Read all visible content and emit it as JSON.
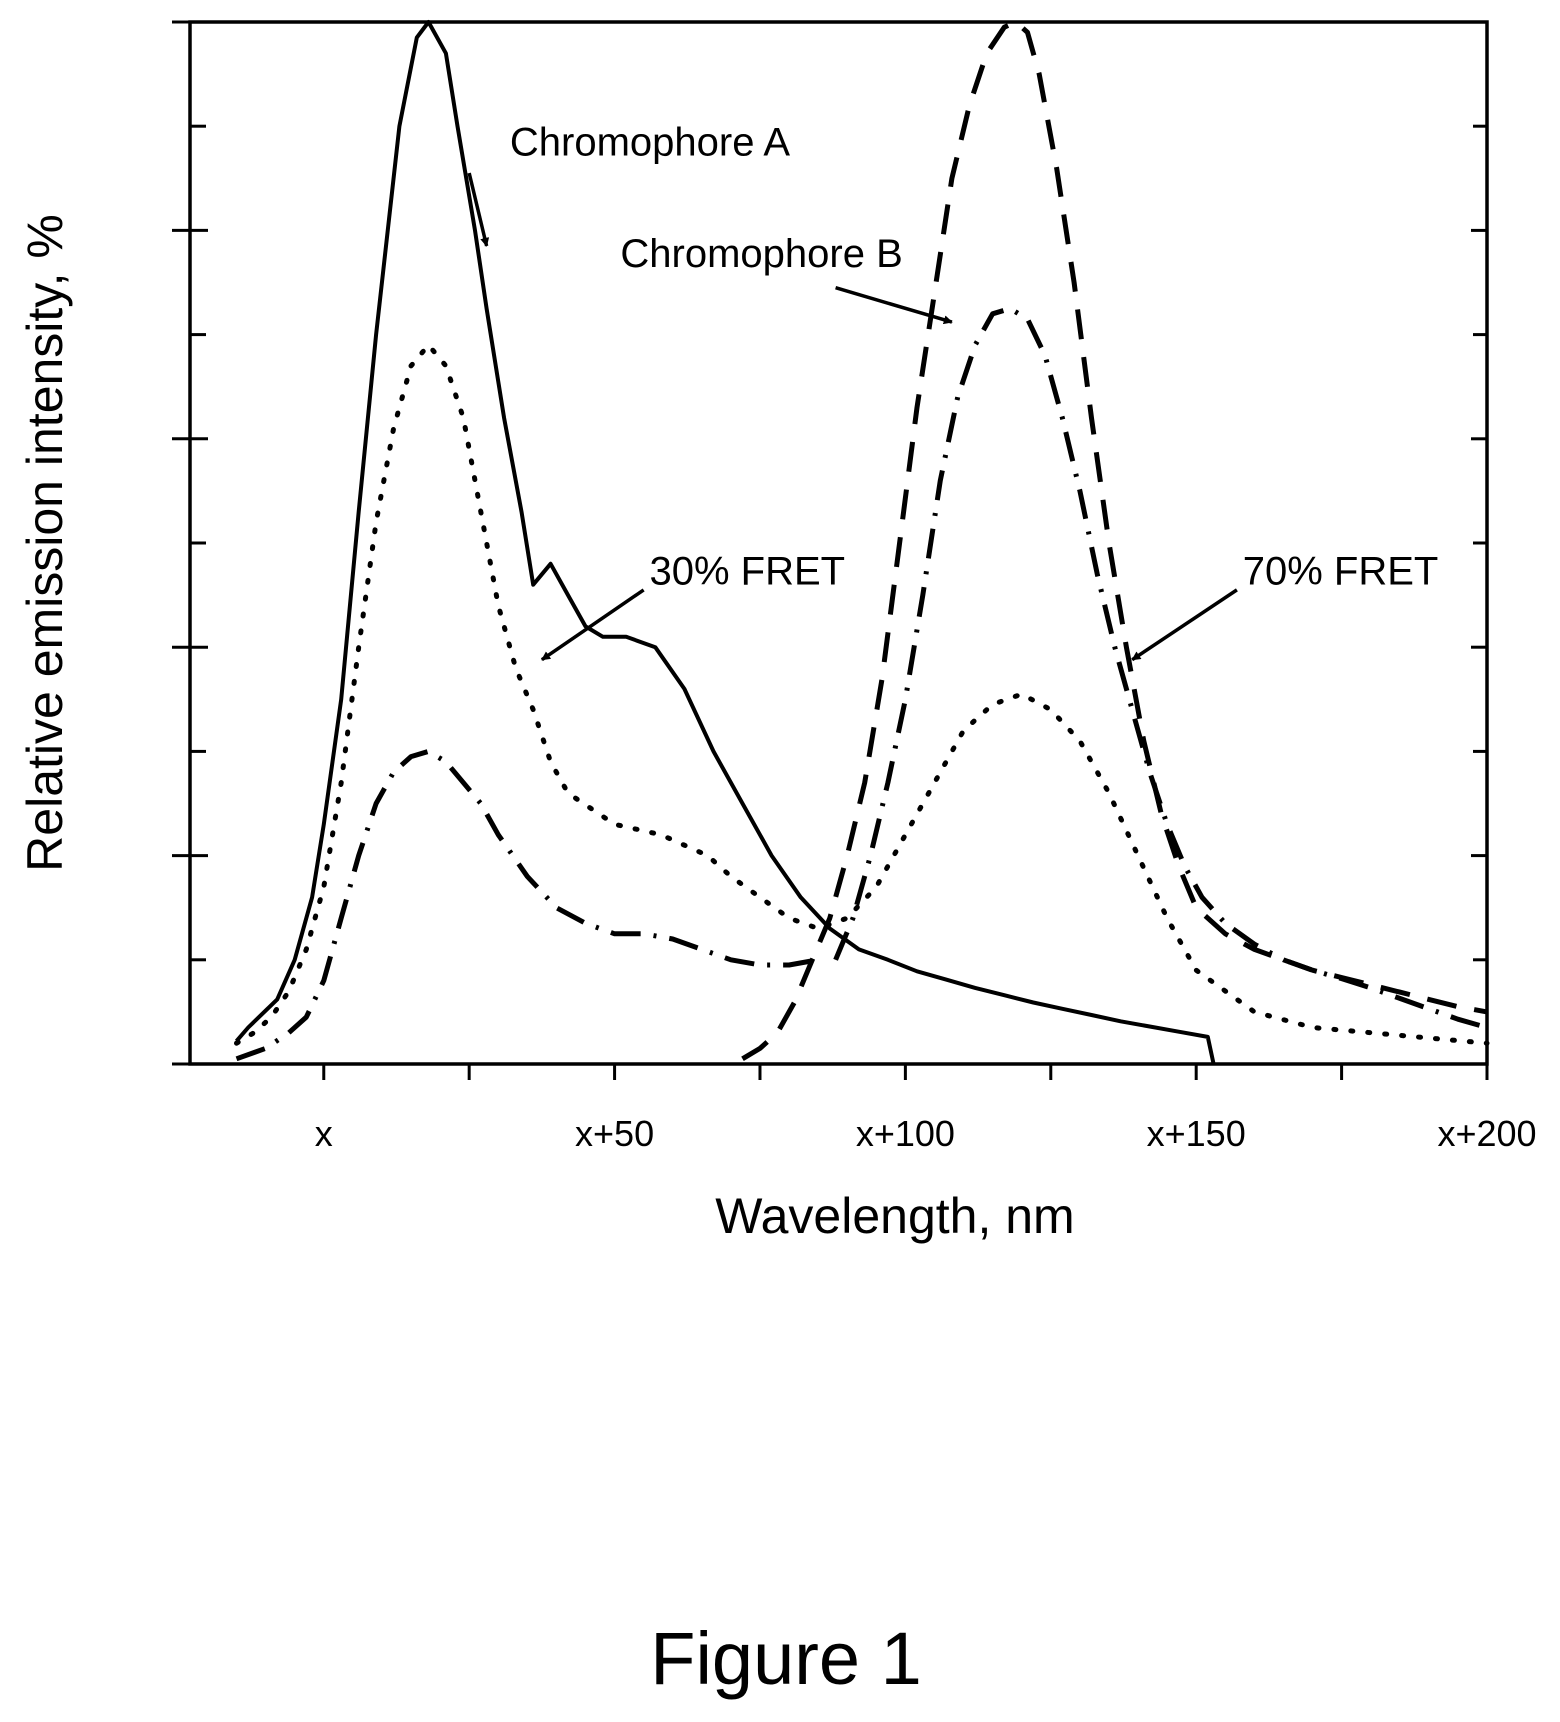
{
  "figure_caption": "Figure 1",
  "chart_data": {
    "type": "line",
    "title": "",
    "xlabel": "Wavelength, nm",
    "ylabel": "Relative emission intensity, %",
    "xlim": [
      -23,
      200
    ],
    "ylim": [
      0,
      100
    ],
    "x_tick_labels": [
      {
        "value": 0,
        "label": "x"
      },
      {
        "value": 50,
        "label": "x+50"
      },
      {
        "value": 100,
        "label": "x+100"
      },
      {
        "value": 150,
        "label": "x+150"
      },
      {
        "value": 200,
        "label": "x+200"
      }
    ],
    "x_minor_ticks": [
      0,
      25,
      50,
      75,
      100,
      125,
      150,
      175,
      200
    ],
    "y_major_ticks": [
      0,
      20,
      40,
      60,
      80,
      100
    ],
    "y_minor_ticks": [
      10,
      30,
      50,
      70,
      90
    ],
    "y_tick_labels_shown": false,
    "grid": false,
    "legend": "none",
    "series": [
      {
        "style": "solid",
        "x": [
          -15,
          -13,
          -8,
          -5,
          -2,
          0,
          3,
          6,
          9,
          13,
          16,
          18,
          21,
          23,
          26,
          28,
          31,
          34,
          36,
          39,
          42,
          45,
          48,
          52,
          57,
          62,
          67,
          72,
          77,
          82,
          87,
          92,
          97,
          102,
          107,
          112,
          117,
          122,
          127,
          132,
          137,
          142,
          147,
          152,
          153
        ],
        "y": [
          2.2,
          3.5,
          6.2,
          10,
          16,
          23,
          35,
          53,
          70,
          90,
          98.5,
          100,
          97,
          90,
          80,
          72.5,
          62,
          53,
          46,
          48,
          45,
          42,
          41,
          41,
          40,
          36,
          30,
          25,
          20,
          16,
          13,
          11,
          10,
          8.9,
          8.1,
          7.3,
          6.6,
          5.9,
          5.3,
          4.7,
          4.1,
          3.6,
          3.1,
          2.6,
          0
        ]
      },
      {
        "style": "dotted",
        "x": [
          -15,
          -12,
          -9,
          -6,
          -3,
          0,
          3,
          6,
          9,
          12,
          15,
          18,
          21,
          24,
          27,
          30,
          33,
          36,
          39,
          42,
          46,
          50,
          54,
          58,
          62,
          66,
          70,
          75,
          80,
          85,
          90,
          95,
          100,
          105,
          110,
          115,
          120,
          125,
          130,
          135,
          140,
          145,
          150,
          160,
          170,
          180,
          190,
          200
        ],
        "y": [
          2,
          3,
          4.5,
          7,
          11,
          17,
          27,
          40,
          52,
          61,
          67,
          69,
          67,
          62,
          53,
          44,
          38,
          34,
          29,
          26,
          24.5,
          23,
          22.5,
          22,
          21,
          20,
          18,
          16,
          14,
          13,
          14,
          17,
          22,
          27,
          32,
          34.5,
          35.5,
          34,
          31,
          26,
          20,
          14,
          9,
          5,
          3.5,
          3,
          2.5,
          2
        ]
      },
      {
        "style": "dash-dot",
        "x": [
          -15,
          -10,
          -6,
          -3,
          0,
          3,
          6,
          9,
          12,
          15,
          18,
          21,
          24,
          27,
          30,
          35,
          40,
          45,
          50,
          55,
          60,
          65,
          70,
          75,
          80,
          85
        ],
        "y": [
          0.5,
          1.5,
          3,
          4.5,
          8,
          14,
          20,
          25,
          28,
          29.5,
          30,
          29,
          27,
          25,
          22,
          18,
          15,
          13.5,
          12.5,
          12.5,
          12,
          11,
          10,
          9.5,
          9.5,
          10
        ]
      },
      {
        "style": "dashed",
        "x": [
          72,
          75,
          78,
          81,
          84,
          87,
          90,
          93,
          96,
          99,
          102,
          105,
          108,
          111,
          114,
          117,
          119,
          121,
          123,
          126,
          129,
          132,
          135,
          138,
          141,
          144,
          147,
          150,
          155,
          160,
          165,
          170,
          175,
          180,
          185,
          190,
          195,
          200
        ],
        "y": [
          0.5,
          1.5,
          3,
          6,
          10,
          14,
          20,
          27,
          37,
          50,
          63,
          74,
          85,
          92,
          97,
          99.5,
          100,
          99,
          95,
          86,
          75,
          62,
          50,
          40,
          31,
          24,
          19,
          15,
          12.5,
          11,
          10,
          9,
          8.3,
          7.6,
          6.9,
          6.2,
          5.5,
          5
        ]
      },
      {
        "style": "dash-dot",
        "x": [
          88,
          91,
          94,
          97,
          100,
          103,
          106,
          109,
          112,
          115,
          118,
          121,
          124,
          127,
          130,
          133,
          136,
          139,
          142,
          145,
          148,
          151,
          155,
          160,
          165,
          170,
          175,
          180,
          185,
          190,
          195,
          200
        ],
        "y": [
          10,
          14,
          20,
          27,
          35,
          45,
          56,
          64,
          69,
          72,
          72.5,
          71.5,
          68,
          62,
          55,
          47,
          40,
          34,
          28,
          23,
          19,
          16,
          13.5,
          11.5,
          10,
          9,
          8.2,
          7.3,
          6.3,
          5.3,
          4.3,
          3.5
        ]
      }
    ],
    "annotations": [
      {
        "text": "Chromophore A",
        "text_x": 32,
        "text_y": 87.2,
        "arrow_from": [
          25,
          85.5
        ],
        "arrow_to": [
          28,
          78.5
        ]
      },
      {
        "text": "Chromophore B",
        "text_x": 51,
        "text_y": 76.5,
        "arrow_from": [
          88,
          74.5
        ],
        "arrow_to": [
          108,
          71.2
        ]
      },
      {
        "text": "30% FRET",
        "text_x": 56,
        "text_y": 46,
        "arrow_from": [
          55,
          45.5
        ],
        "arrow_to": [
          37.5,
          38.8
        ]
      },
      {
        "text": "70% FRET",
        "text_x": 158,
        "text_y": 46,
        "arrow_from": [
          157,
          45.5
        ],
        "arrow_to": [
          139,
          38.8
        ]
      }
    ]
  }
}
